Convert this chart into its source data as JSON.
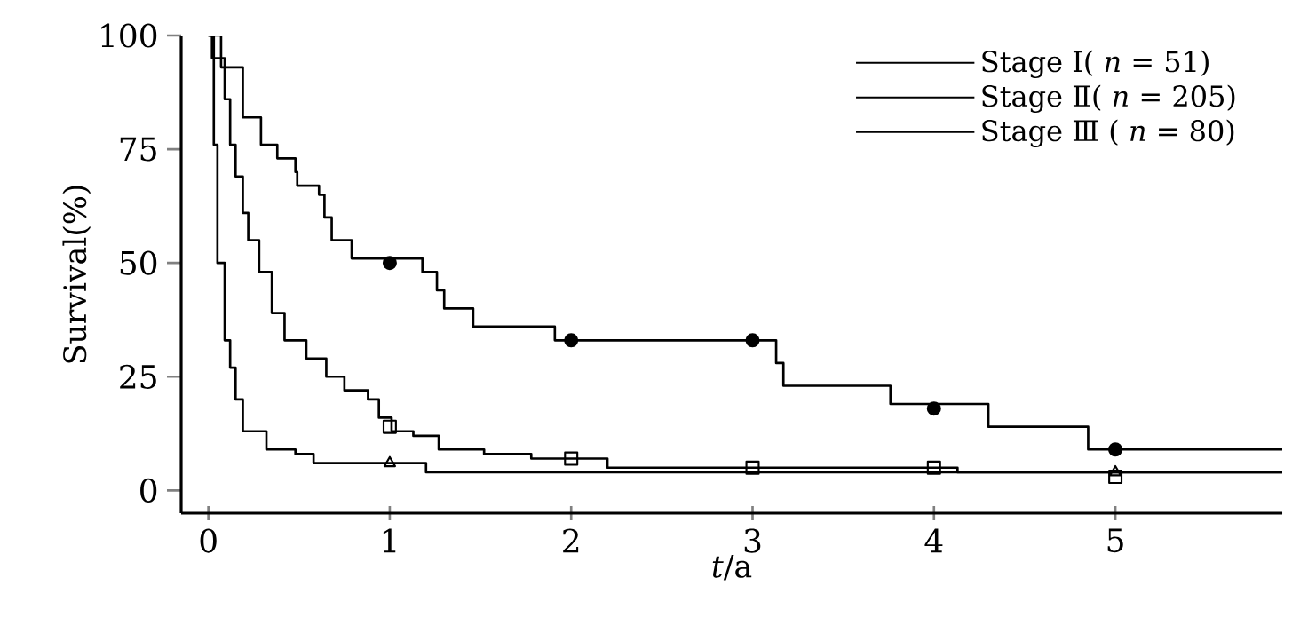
{
  "chart_data": {
    "type": "step",
    "xlabel": "*t*/a",
    "ylabel": "Survival(%)",
    "xlim": [
      -0.15,
      5.92
    ],
    "ylim": [
      -5,
      100
    ],
    "xticks": [
      0,
      1,
      2,
      3,
      4,
      5
    ],
    "yticks": [
      0,
      25,
      50,
      75,
      100
    ],
    "legend": "top right",
    "grid": false,
    "series": [
      {
        "name": "Stage Ⅰ( *n* = 51)",
        "color": "#000000",
        "x": [
          0,
          0.07,
          0.19,
          0.29,
          0.38,
          0.48,
          0.49,
          0.61,
          0.64,
          0.68,
          0.79,
          1.18,
          1.26,
          1.3,
          1.46,
          1.91,
          3.13,
          3.17,
          3.76,
          4.3,
          4.85,
          5.92
        ],
        "values": [
          100,
          93,
          82,
          76,
          73,
          70,
          67,
          65,
          60,
          55,
          51,
          48,
          44,
          40,
          36,
          33,
          28,
          23,
          19,
          14,
          9,
          9
        ]
      },
      {
        "name": "Stage Ⅱ( *n* = 205)",
        "color": "#000000",
        "x": [
          0,
          0.02,
          0.09,
          0.12,
          0.15,
          0.19,
          0.22,
          0.28,
          0.35,
          0.42,
          0.54,
          0.65,
          0.75,
          0.88,
          0.94,
          1.01,
          1.13,
          1.27,
          1.52,
          1.78,
          2.1,
          2.2,
          4.13,
          5.92
        ],
        "values": [
          100,
          95,
          86,
          76,
          69,
          61,
          55,
          48,
          39,
          33,
          29,
          25,
          22,
          20,
          16,
          13,
          12,
          9,
          8,
          7,
          7,
          5,
          4,
          4
        ]
      },
      {
        "name": "Stage Ⅲ ( *n* = 80)",
        "color": "#000000",
        "x": [
          0,
          0.03,
          0.05,
          0.09,
          0.12,
          0.15,
          0.19,
          0.32,
          0.48,
          0.58,
          1.2,
          5.92
        ],
        "values": [
          100,
          76,
          50,
          33,
          27,
          20,
          13,
          9,
          8,
          6,
          4,
          4
        ]
      },
      {
        "type": "scatter",
        "color": "#000000",
        "marker": "circle",
        "x": [
          1,
          2,
          3,
          4,
          5
        ],
        "values": [
          50,
          33,
          33,
          18,
          9
        ]
      },
      {
        "type": "scatter",
        "color": "#000000",
        "marker": "square",
        "x": [
          1,
          2,
          3,
          4,
          5
        ],
        "values": [
          14,
          7,
          5,
          5,
          3
        ]
      },
      {
        "type": "scatter",
        "color": "#000000",
        "marker": "triangle",
        "x": [
          1,
          5
        ],
        "values": [
          6,
          4
        ]
      }
    ]
  }
}
